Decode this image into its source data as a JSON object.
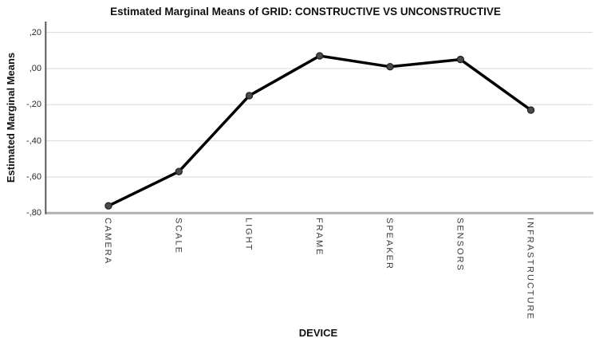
{
  "chart_data": {
    "type": "line",
    "title": "Estimated Marginal Means of GRID: CONSTRUCTIVE VS UNCONSTRUCTIVE",
    "xlabel": "DEVICE",
    "ylabel": "Estimated Marginal Means",
    "categories": [
      "CAMERA",
      "SCALE",
      "LIGHT",
      "FRAME",
      "SPEAKER",
      "SENSORS",
      "INFRASTRUCTURE"
    ],
    "values": [
      -0.76,
      -0.57,
      -0.15,
      0.07,
      0.01,
      0.05,
      -0.23
    ],
    "y_ticks": [
      {
        "value": 0.2,
        "label": ",20"
      },
      {
        "value": 0.0,
        "label": ",00"
      },
      {
        "value": -0.2,
        "label": "-,20"
      },
      {
        "value": -0.4,
        "label": "-,40"
      },
      {
        "value": -0.6,
        "label": "-,60"
      },
      {
        "value": -0.8,
        "label": "-,80"
      }
    ],
    "ylim": [
      -0.8,
      0.26
    ],
    "grid": "horizontal",
    "legend": "none",
    "colors": {
      "line": "#000000",
      "marker_fill": "#4a4a4a",
      "marker_edge": "#1f1f1f",
      "gridline": "#d9d9d9",
      "y_axis": "#595959",
      "x_axis": "#b0b0b0",
      "text": "#1a1a1a"
    }
  }
}
